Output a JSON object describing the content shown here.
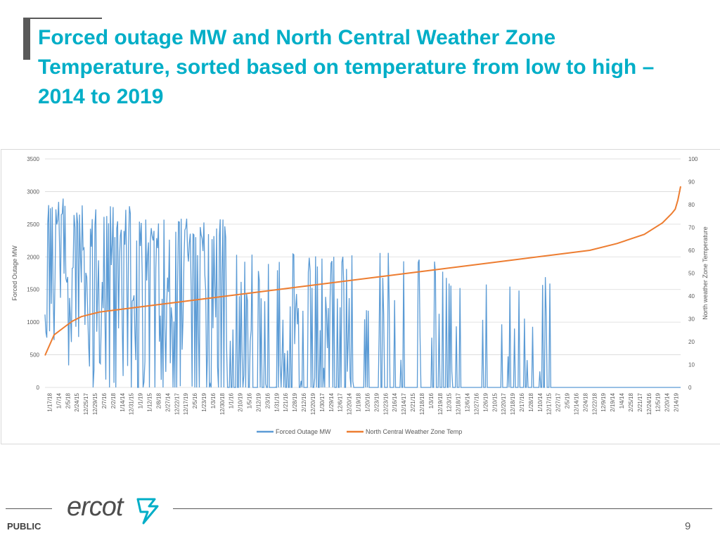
{
  "slide": {
    "title": "Forced outage MW and North Central Weather Zone Temperature, sorted based on temperature from low to high – 2014 to 2019",
    "footer_label": "PUBLIC",
    "page_number": "9",
    "logo_text": "ercot"
  },
  "colors": {
    "title": "#00AEC7",
    "outage_series": "#5B9BD5",
    "temp_series": "#ED7D31",
    "axis_text": "#595959",
    "gridline": "#D9D9D9"
  },
  "chart_data": {
    "type": "line",
    "title": "",
    "ylabel": "Forced Outage MW",
    "y2label": "North weather Zone Temperature",
    "ylim": [
      0,
      3500
    ],
    "y2lim": [
      0,
      100
    ],
    "y_ticks": [
      "0",
      "500",
      "1000",
      "1500",
      "2000",
      "2500",
      "3000",
      "3500"
    ],
    "y2_ticks": [
      "0",
      "10",
      "20",
      "30",
      "40",
      "50",
      "60",
      "70",
      "80",
      "90",
      "100"
    ],
    "grid": true,
    "legend_position": "bottom",
    "categories": [
      "1/17/18",
      "1/7/14",
      "2/5/18",
      "2/24/15",
      "12/25/17",
      "12/29/15",
      "2/7/16",
      "2/2/18",
      "1/14/14",
      "12/31/15",
      "1/1/19",
      "1/12/15",
      "2/8/18",
      "2/27/14",
      "12/22/17",
      "12/17/19",
      "2/5/16",
      "1/23/19",
      "1/3/16",
      "12/30/18",
      "1/1/16",
      "2/10/19",
      "1/5/16",
      "2/12/19",
      "2/3/16",
      "1/31/19",
      "1/21/16",
      "1/28/19",
      "2/12/16",
      "12/20/19",
      "1/30/17",
      "1/29/14",
      "12/6/17",
      "12/20/14",
      "1/19/18",
      "1/20/16",
      "2/23/19",
      "12/23/16",
      "2/16/14",
      "12/14/17",
      "2/21/15",
      "12/18/18",
      "1/3/16",
      "12/19/18",
      "12/3/15",
      "12/18/17",
      "12/6/14",
      "12/27/16",
      "1/26/19",
      "2/10/15",
      "12/20/17",
      "12/18/19",
      "2/17/16",
      "1/28/18",
      "1/10/14",
      "12/17/15",
      "2/27/17",
      "2/5/19",
      "12/14/16",
      "2/24/18",
      "12/22/18",
      "12/9/19",
      "2/19/14",
      "1/4/14",
      "2/25/18",
      "2/21/17",
      "12/24/16",
      "12/5/19",
      "2/20/14",
      "2/14/19"
    ],
    "series": [
      {
        "name": "Forced Outage MW",
        "type": "line",
        "axis": "left",
        "segments": [
          {
            "start_category": 0,
            "end_category": 5,
            "base": 300,
            "peak": 2980,
            "density": "very high"
          },
          {
            "start_category": 5,
            "end_category": 10,
            "base": 0,
            "peak": 2800,
            "density": "high"
          },
          {
            "start_category": 10,
            "end_category": 20,
            "base": 0,
            "peak": 2600,
            "density": "high"
          },
          {
            "start_category": 20,
            "end_category": 34,
            "base": 0,
            "peak": 2070,
            "density": "medium"
          },
          {
            "start_category": 34,
            "end_category": 44,
            "base": 0,
            "peak": 2070,
            "density": "low"
          },
          {
            "start_category": 44,
            "end_category": 56,
            "base": 0,
            "peak": 1720,
            "density": "sparse"
          },
          {
            "start_category": 56,
            "end_category": 70,
            "base": 0,
            "peak": 0,
            "density": "zero"
          }
        ]
      },
      {
        "name": "North Central Weather Zone Temp",
        "type": "line",
        "axis": "right",
        "x": [
          0,
          1,
          2,
          3,
          4,
          5,
          6,
          8,
          10,
          12,
          14,
          16,
          18,
          20,
          24,
          28,
          32,
          36,
          40,
          44,
          48,
          52,
          56,
          60,
          63,
          66,
          68,
          69,
          69.4,
          69.7,
          70
        ],
        "values": [
          14,
          23,
          26,
          29,
          31,
          32,
          33,
          34,
          35,
          36,
          37,
          38,
          39,
          40,
          42,
          44,
          46,
          48,
          50,
          52,
          54,
          56,
          58,
          60,
          63,
          67,
          72,
          76,
          78,
          82,
          88
        ]
      }
    ]
  }
}
